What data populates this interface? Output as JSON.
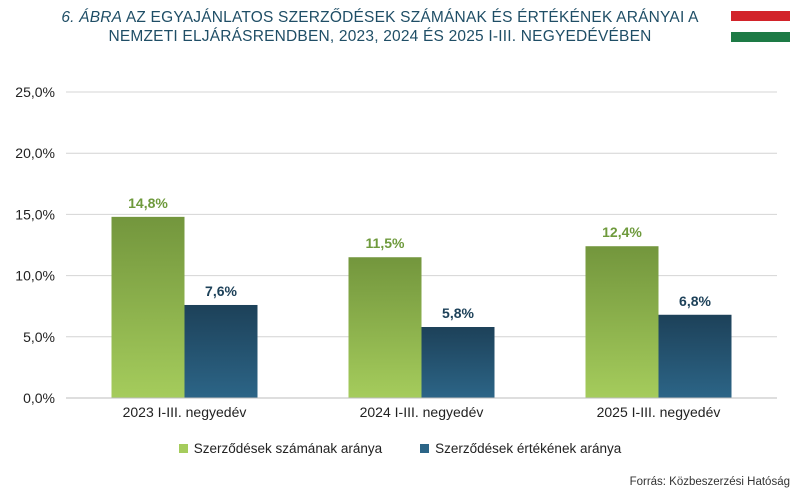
{
  "title": {
    "prefix": "6. ÁBRA",
    "line1_rest": " AZ EGYAJÁNLATOS SZERZŐDÉSEK SZÁMÁNAK ÉS ÉRTÉKÉNEK ARÁNYAI A",
    "line2": "NEMZETI ELJÁRÁSRENDBEN, 2023, 2024 ÉS 2025 I-III. NEGYEDÉVÉBEN"
  },
  "flag_colors": {
    "top": "#d2232a",
    "middle": "#ffffff",
    "bottom": "#1d7a45"
  },
  "colors": {
    "series1_top": "#73963d",
    "series1_bottom": "#a5cc5c",
    "series2_top": "#1d4159",
    "series2_bottom": "#2c6587",
    "label1": "#6e9a3c",
    "label2": "#1d4159",
    "grid": "#d4d4d4"
  },
  "chart_data": {
    "type": "bar",
    "categories": [
      "2023 I-III. negyedév",
      "2024 I-III. negyedév",
      "2025 I-III. negyedév"
    ],
    "series": [
      {
        "name": "Szerződések számának aránya",
        "values": [
          14.8,
          11.5,
          12.4
        ],
        "labels": [
          "14,8%",
          "11,5%",
          "12,4%"
        ]
      },
      {
        "name": "Szerződések értékének aránya",
        "values": [
          7.6,
          5.8,
          6.8
        ],
        "labels": [
          "7,6%",
          "5,8%",
          "6,8%"
        ]
      }
    ],
    "ylim": [
      0,
      25
    ],
    "yticks": [
      0,
      5,
      10,
      15,
      20,
      25
    ],
    "ytick_labels": [
      "0,0%",
      "5,0%",
      "10,0%",
      "15,0%",
      "20,0%",
      "25,0%"
    ],
    "grid": true,
    "legend_position": "bottom"
  },
  "source": "Forrás: Közbeszerzési Hatóság"
}
